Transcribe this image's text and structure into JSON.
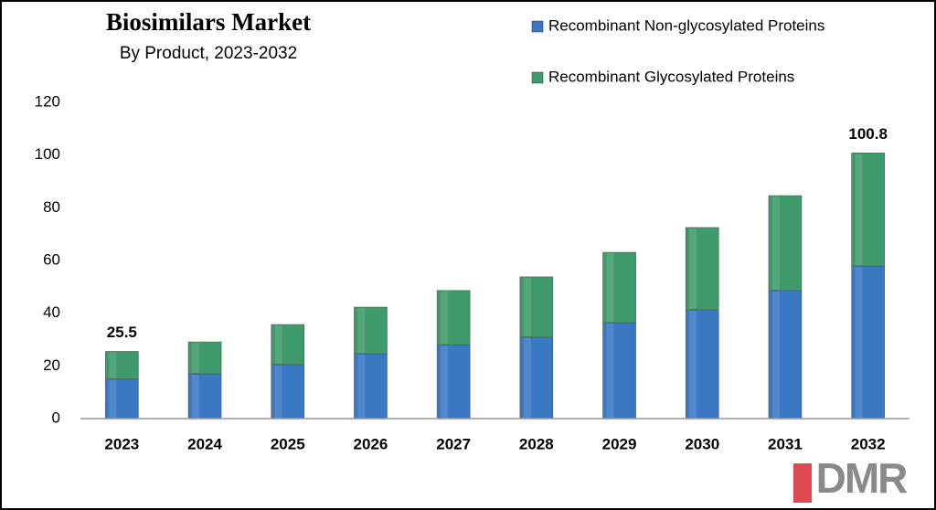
{
  "chart_data": {
    "type": "stacked_bar",
    "title": "Biosimilars Market",
    "subtitle": "By Product, 2023-2032",
    "categories": [
      "2023",
      "2024",
      "2025",
      "2026",
      "2027",
      "2028",
      "2029",
      "2030",
      "2031",
      "2032"
    ],
    "series": [
      {
        "name": "Recombinant Non-glycosylated Proteins",
        "color": "#3b78c3",
        "values": [
          15,
          17,
          20.5,
          24.6,
          28,
          30.9,
          36.4,
          41.3,
          48.6,
          57.9
        ]
      },
      {
        "name": "Recombinant Glycosylated Proteins",
        "color": "#3f9a6b",
        "values": [
          10.5,
          12.1,
          15.2,
          17.7,
          20.6,
          22.9,
          26.7,
          31.2,
          36,
          42.9
        ]
      }
    ],
    "annotations": [
      {
        "category": "2023",
        "value": 25.5
      },
      {
        "category": "2032",
        "value": 100.8
      }
    ],
    "ylim": [
      0,
      120
    ],
    "yticks": [
      0,
      20,
      40,
      60,
      80,
      100,
      120
    ],
    "grid": false,
    "legend": "top-right",
    "logo": "DMR"
  }
}
